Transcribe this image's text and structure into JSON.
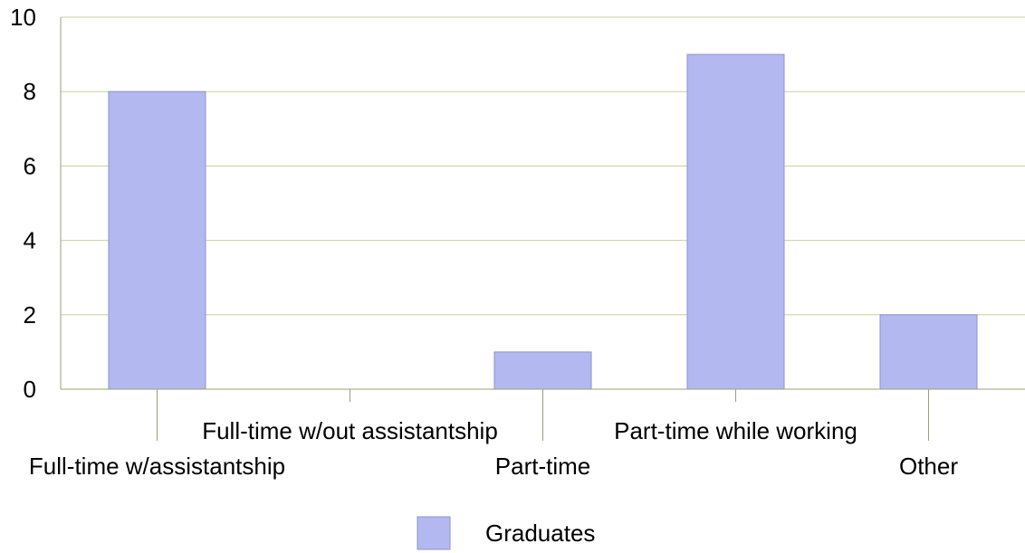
{
  "chart_data": {
    "type": "bar",
    "categories": [
      "Full-time w/assistantship",
      "Full-time w/out assistantship",
      "Part-time",
      "Part-time while working",
      "Other"
    ],
    "series": [
      {
        "name": "Graduates",
        "values": [
          8,
          0,
          1,
          9,
          2
        ]
      }
    ],
    "y_ticks": [
      "0",
      "2",
      "4",
      "6",
      "8",
      "10"
    ],
    "ylim": [
      0,
      10
    ],
    "grid": true,
    "legend_position": "bottom",
    "colors": {
      "bar_fill": "#b3b9f0",
      "bar_stroke": "#8c92c8",
      "gridline": "#c8cfa0",
      "axis": "#9aa07a"
    }
  }
}
